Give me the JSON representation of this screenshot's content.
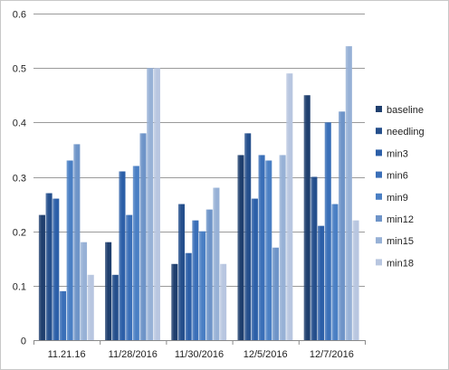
{
  "chart_data": {
    "type": "bar",
    "title": "",
    "xlabel": "",
    "ylabel": "",
    "ylim": [
      0,
      0.6
    ],
    "yticks": [
      "0",
      "0.1",
      "0.2",
      "0.3",
      "0.4",
      "0.5",
      "0.6"
    ],
    "grid": "horizontal major gridlines",
    "legend_position": "right",
    "categories": [
      "11.21.16",
      "11/28/2016",
      "11/30/2016",
      "12/5/2016",
      "12/7/2016"
    ],
    "series": [
      {
        "name": "baseline",
        "color": "#1f3f6e",
        "values": [
          0.23,
          0.18,
          0.14,
          0.34,
          0.45
        ]
      },
      {
        "name": "needling",
        "color": "#254f8c",
        "values": [
          0.27,
          0.12,
          0.25,
          0.38,
          0.3
        ]
      },
      {
        "name": "min3",
        "color": "#2c5fa8",
        "values": [
          0.26,
          0.31,
          0.16,
          0.26,
          0.21
        ]
      },
      {
        "name": "min6",
        "color": "#3a6fb8",
        "values": [
          0.09,
          0.23,
          0.22,
          0.34,
          0.4
        ]
      },
      {
        "name": "min9",
        "color": "#4a7fc4",
        "values": [
          0.33,
          0.32,
          0.2,
          0.33,
          0.25
        ]
      },
      {
        "name": "min12",
        "color": "#6e94c8",
        "values": [
          0.36,
          0.38,
          0.24,
          0.17,
          0.42
        ]
      },
      {
        "name": "min15",
        "color": "#97b1d6",
        "values": [
          0.18,
          0.5,
          0.28,
          0.34,
          0.54
        ]
      },
      {
        "name": "min18",
        "color": "#b8c6e0",
        "values": [
          0.12,
          0.5,
          0.14,
          0.49,
          0.22
        ]
      }
    ]
  }
}
